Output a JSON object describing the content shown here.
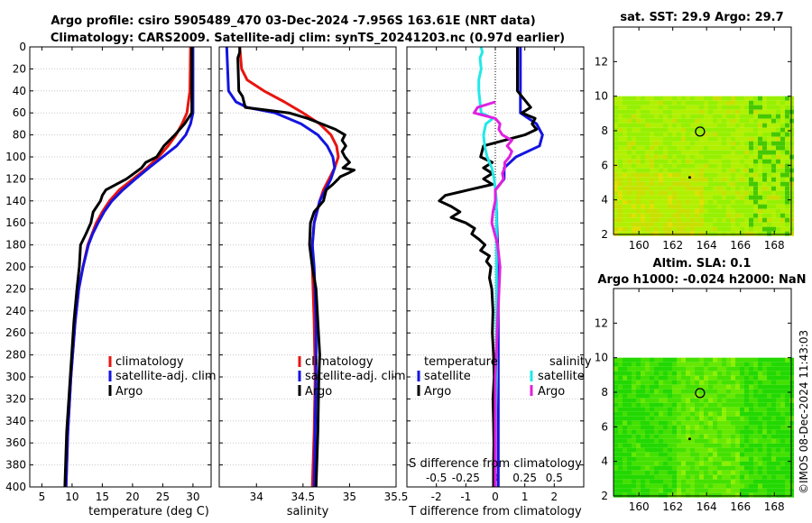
{
  "header": {
    "title_line1": "Argo profile: csiro 5905489_470 03-Dec-2024 -7.956S 163.61E (NRT data)",
    "title_line2": "Climatology: CARS2009. Satellite-adj clim: synTS_20241203.nc (0.97d earlier)",
    "side_note": "©IMOS 08-Dec-2024 11:43:03"
  },
  "colors": {
    "climatology": "#e8140f",
    "satellite": "#1414e0",
    "argo": "#000000",
    "sat_s": "#22e8e8",
    "argo_s": "#e020e0"
  },
  "chart_data": [
    {
      "id": "temperature",
      "type": "line",
      "xlabel": "temperature (deg C)",
      "ylabel": "",
      "xlim": [
        3,
        33
      ],
      "ylim": [
        0,
        400
      ],
      "xticks": [
        5,
        10,
        15,
        20,
        25,
        30
      ],
      "yticks": [
        0,
        20,
        40,
        60,
        80,
        100,
        120,
        140,
        160,
        180,
        200,
        220,
        240,
        260,
        280,
        300,
        320,
        340,
        360,
        380,
        400
      ],
      "legend": [
        "climatology",
        "satellite-adj. clim",
        "Argo"
      ],
      "legend_position": "lower-right",
      "series": [
        {
          "name": "climatology",
          "color": "#e8140f",
          "depth": [
            0,
            40,
            60,
            70,
            80,
            90,
            100,
            110,
            120,
            130,
            140,
            150,
            160,
            170,
            180,
            200,
            220,
            250,
            300,
            350,
            400
          ],
          "values": [
            29.6,
            29.5,
            29.0,
            28.2,
            27.2,
            25.9,
            24.3,
            22.4,
            20.1,
            17.8,
            16.2,
            15.0,
            14.0,
            13.3,
            12.6,
            11.8,
            11.1,
            10.5,
            9.8,
            9.3,
            9.0
          ]
        },
        {
          "name": "satellite-adj. clim",
          "color": "#1414e0",
          "depth": [
            0,
            60,
            70,
            80,
            90,
            100,
            110,
            120,
            130,
            140,
            150,
            160,
            170,
            180,
            200,
            220,
            250,
            300,
            350,
            400
          ],
          "values": [
            30.0,
            30.0,
            29.6,
            28.8,
            27.3,
            25.0,
            22.7,
            20.5,
            18.4,
            16.6,
            15.3,
            14.3,
            13.4,
            12.7,
            11.8,
            11.1,
            10.5,
            9.8,
            9.3,
            9.0
          ]
        },
        {
          "name": "Argo",
          "color": "#000000",
          "depth": [
            0,
            60,
            70,
            80,
            90,
            100,
            105,
            110,
            120,
            130,
            135,
            140,
            150,
            160,
            170,
            180,
            200,
            220,
            250,
            300,
            350,
            400
          ],
          "values": [
            29.8,
            29.8,
            28.6,
            27.0,
            25.2,
            24.0,
            22.2,
            21.5,
            19.0,
            15.6,
            15.0,
            14.7,
            13.5,
            13.1,
            12.3,
            11.4,
            11.2,
            10.8,
            10.3,
            9.7,
            9.1,
            8.8
          ]
        }
      ]
    },
    {
      "id": "salinity",
      "type": "line",
      "xlabel": "salinity",
      "xlim": [
        33.6,
        35.5
      ],
      "ylim": [
        0,
        400
      ],
      "xticks": [
        34,
        34.5,
        35,
        35.5
      ],
      "legend": [
        "climatology",
        "satellite-adj. clim",
        "Argo"
      ],
      "legend_position": "lower-right",
      "series": [
        {
          "name": "climatology",
          "color": "#e8140f",
          "depth": [
            0,
            20,
            30,
            40,
            50,
            60,
            70,
            80,
            90,
            100,
            110,
            120,
            130,
            140,
            160,
            180,
            200,
            250,
            300,
            350,
            400
          ],
          "values": [
            33.82,
            33.84,
            33.9,
            34.08,
            34.3,
            34.5,
            34.68,
            34.8,
            34.86,
            34.88,
            34.84,
            34.78,
            34.72,
            34.68,
            34.62,
            34.6,
            34.6,
            34.62,
            34.63,
            34.62,
            34.6
          ]
        },
        {
          "name": "satellite-adj. clim",
          "color": "#1414e0",
          "depth": [
            0,
            20,
            40,
            50,
            55,
            60,
            70,
            80,
            90,
            100,
            110,
            120,
            130,
            140,
            160,
            180,
            200,
            250,
            300,
            350,
            400
          ],
          "values": [
            33.68,
            33.69,
            33.7,
            33.78,
            33.9,
            34.2,
            34.48,
            34.66,
            34.76,
            34.82,
            34.84,
            34.8,
            34.74,
            34.68,
            34.62,
            34.6,
            34.62,
            34.64,
            34.64,
            34.63,
            34.62
          ]
        },
        {
          "name": "Argo",
          "color": "#000000",
          "depth": [
            0,
            5,
            10,
            40,
            45,
            55,
            60,
            65,
            70,
            75,
            80,
            85,
            90,
            95,
            100,
            105,
            110,
            112,
            115,
            118,
            120,
            125,
            130,
            140,
            150,
            160,
            180,
            200,
            220,
            250,
            280,
            300,
            350,
            400
          ],
          "values": [
            33.82,
            33.82,
            33.8,
            33.81,
            33.85,
            33.88,
            34.35,
            34.55,
            34.7,
            34.85,
            34.95,
            34.92,
            34.96,
            34.92,
            34.95,
            35.0,
            34.93,
            35.05,
            34.98,
            34.9,
            34.88,
            34.82,
            34.75,
            34.72,
            34.62,
            34.58,
            34.57,
            34.6,
            34.64,
            34.66,
            34.68,
            34.67,
            34.66,
            34.64
          ]
        }
      ]
    },
    {
      "id": "difference",
      "type": "line",
      "xlabel": "T difference from climatology",
      "xlabel_top": "S difference from climatology",
      "xlim": [
        -3,
        3
      ],
      "ylim": [
        0,
        400
      ],
      "xticks": [
        -2,
        -1,
        0,
        1,
        2
      ],
      "xticks_top_labels": [
        "-0.5",
        "-0.25",
        "0",
        "0.25",
        "0.5"
      ],
      "legend_t_title": "temperature",
      "legend_s_title": "salinity",
      "legend_t": [
        "satellite",
        "Argo"
      ],
      "legend_s": [
        "satellite",
        "Argo"
      ],
      "legend_position": "lower-center",
      "series": [
        {
          "name": "T satellite",
          "color": "#1414e0",
          "depth": [
            0,
            30,
            60,
            70,
            80,
            90,
            100,
            110,
            120,
            130,
            140,
            150,
            160,
            180,
            200,
            250,
            300,
            400
          ],
          "values": [
            0.85,
            0.85,
            0.85,
            1.4,
            1.6,
            1.5,
            0.7,
            0.3,
            0.3,
            0.0,
            0.0,
            0.05,
            0.05,
            0.08,
            0.1,
            0.1,
            0.1,
            0.1
          ]
        },
        {
          "name": "T Argo",
          "color": "#000000",
          "depth": [
            0,
            40,
            45,
            55,
            60,
            65,
            70,
            75,
            80,
            90,
            100,
            105,
            110,
            115,
            120,
            125,
            130,
            135,
            140,
            145,
            150,
            155,
            160,
            165,
            170,
            175,
            180,
            185,
            190,
            195,
            200,
            210,
            220,
            240,
            260,
            280,
            300,
            320,
            340,
            360,
            380,
            400
          ],
          "values": [
            0.75,
            0.75,
            0.9,
            1.2,
            0.9,
            1.35,
            1.25,
            1.4,
            1.0,
            -0.4,
            -0.5,
            -0.1,
            -0.4,
            -0.1,
            -0.4,
            -0.1,
            -0.9,
            -1.7,
            -1.9,
            -1.5,
            -1.2,
            -1.5,
            -1.0,
            -0.7,
            -0.8,
            -0.55,
            -0.35,
            -0.5,
            -0.2,
            -0.3,
            -0.15,
            -0.2,
            -0.12,
            -0.08,
            -0.1,
            -0.06,
            -0.04,
            -0.08,
            -0.06,
            -0.05,
            -0.06,
            -0.06
          ]
        },
        {
          "name": "S satellite",
          "color": "#22e8e8",
          "depth": [
            0,
            5,
            10,
            20,
            30,
            40,
            50,
            60,
            65,
            70,
            80,
            90,
            100,
            110,
            120,
            130,
            140,
            150,
            200,
            250,
            300,
            350,
            400
          ],
          "values": [
            -0.12,
            -0.11,
            -0.13,
            -0.12,
            -0.14,
            -0.14,
            -0.13,
            -0.12,
            -0.02,
            -0.08,
            -0.1,
            -0.09,
            -0.07,
            -0.03,
            -0.01,
            0.0,
            0.01,
            0.01,
            0.01,
            0.01,
            0.01,
            0.0,
            0.0
          ]
        },
        {
          "name": "S Argo",
          "color": "#e020e0",
          "depth": [
            50,
            55,
            60,
            65,
            70,
            75,
            80,
            85,
            90,
            95,
            100,
            105,
            110,
            115,
            120,
            125,
            130,
            140,
            150,
            160,
            180,
            200,
            250,
            300,
            350,
            400
          ],
          "values": [
            0.0,
            -0.15,
            -0.18,
            0.0,
            0.04,
            0.03,
            0.06,
            0.14,
            0.1,
            0.14,
            0.12,
            0.08,
            0.08,
            0.06,
            0.07,
            0.04,
            0.0,
            0.0,
            -0.02,
            -0.03,
            0.02,
            0.04,
            0.02,
            0.0,
            0.0,
            0.0
          ]
        }
      ]
    },
    {
      "id": "sst_map",
      "type": "heatmap",
      "title": "sat. SST: 29.9 Argo: 29.7",
      "xlim": [
        158.5,
        169
      ],
      "ylim": [
        2,
        14
      ],
      "xticks": [
        160,
        162,
        164,
        166,
        168
      ],
      "yticks": [
        2,
        4,
        6,
        8,
        10,
        12
      ],
      "profile_location": {
        "lon": 163.61,
        "lat": 7.956
      },
      "colors": [
        "#7ef000",
        "#96f000",
        "#b0f000",
        "#c8e000",
        "#e0e000",
        "#44c800"
      ]
    },
    {
      "id": "sla_map",
      "type": "heatmap",
      "title_line1": "Altim. SLA: 0.1",
      "title_line2": "Argo h1000: -0.024 h2000: NaN",
      "xlim": [
        158.5,
        169
      ],
      "ylim": [
        2,
        14
      ],
      "xticks": [
        160,
        162,
        164,
        166,
        168
      ],
      "yticks": [
        2,
        4,
        6,
        8,
        10,
        12
      ],
      "profile_location": {
        "lon": 163.61,
        "lat": 7.956
      },
      "colors": [
        "#22d800",
        "#44e000",
        "#66e800",
        "#8cf000",
        "#aaf000",
        "#c8e800"
      ]
    }
  ]
}
